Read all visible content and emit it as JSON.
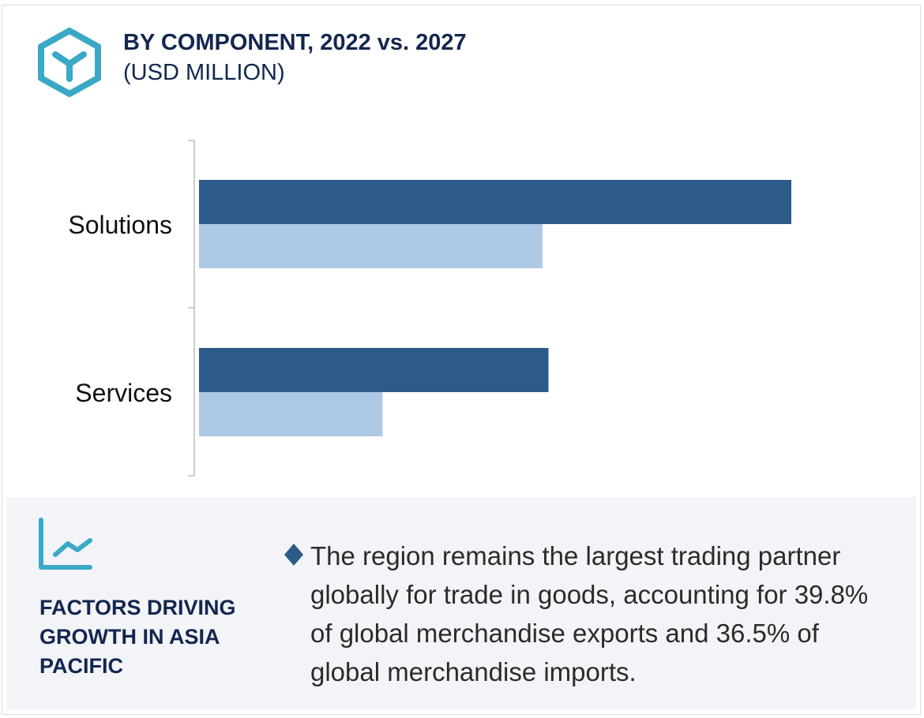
{
  "header": {
    "title": "BY COMPONENT, 2022 vs. 2027",
    "subtitle": "(USD MILLION)",
    "icon": "hexagon-y-icon"
  },
  "chart_data": {
    "type": "bar",
    "orientation": "horizontal",
    "categories": [
      "Solutions",
      "Services"
    ],
    "series": [
      {
        "values": [
          1.0,
          0.59
        ],
        "color": "#2c5b8a"
      },
      {
        "values": [
          0.58,
          0.31
        ],
        "color": "#adc9e6"
      }
    ],
    "xlim": [
      0,
      1.0
    ],
    "grid": false,
    "legend": "none"
  },
  "factors": {
    "icon": "trend-chart-icon",
    "heading": "FACTORS DRIVING GROWTH IN ASIA PACIFIC",
    "bullet_icon": "diamond-icon",
    "text": "The region remains the largest trading partner globally for trade in goods, accounting for 39.8% of global merchandise exports and 36.5% of global merchandise imports."
  }
}
